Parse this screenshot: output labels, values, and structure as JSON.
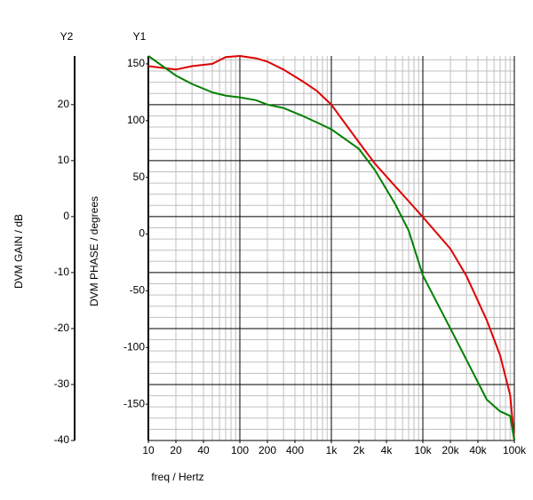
{
  "chart_data": {
    "type": "line",
    "x_label": "freq / Hertz",
    "y_label": "DVM PHASE / degrees",
    "y2_label": "DVM GAIN / dB",
    "y_axis_name": "Y1",
    "y2_axis_name": "Y2",
    "x": [
      10,
      20,
      30,
      50,
      70,
      100,
      150,
      200,
      300,
      500,
      700,
      1000,
      2000,
      3000,
      5000,
      7000,
      10000,
      20000,
      30000,
      50000,
      70000,
      90000,
      100000
    ],
    "series": [
      {
        "color": "#e00000",
        "axis": "y",
        "values": [
          148,
          145,
          148,
          150,
          156,
          157,
          155,
          152,
          145,
          134,
          126,
          114,
          81,
          62,
          42,
          29,
          15,
          -13,
          -37,
          -76,
          -107,
          -142,
          -182
        ]
      },
      {
        "color": "#008000",
        "axis": "y2",
        "values": [
          28.7,
          25.2,
          23.7,
          22.2,
          21.6,
          21.3,
          20.8,
          20,
          19.4,
          17.9,
          16.8,
          15.6,
          12.1,
          8.3,
          2.2,
          -2.5,
          -10.5,
          -20,
          -25.6,
          -32.7,
          -34.8,
          -35.6,
          -40
        ]
      }
    ],
    "xscale": "log",
    "xlim": [
      10,
      100000
    ],
    "xticks": [
      10,
      20,
      40,
      100,
      200,
      400,
      {
        "value": 1000,
        "label": "1k"
      },
      {
        "value": 2000,
        "label": "2k"
      },
      {
        "value": 4000,
        "label": "4k"
      },
      {
        "value": 10000,
        "label": "10k"
      },
      {
        "value": 20000,
        "label": "20k"
      },
      {
        "value": 40000,
        "label": "40k"
      },
      {
        "value": 100000,
        "label": "100k"
      }
    ],
    "xmajor": [
      10,
      100,
      1000,
      10000,
      100000
    ],
    "ylim": [
      -182,
      157
    ],
    "yticks": [
      -150,
      -100,
      -50,
      0,
      50,
      100,
      150
    ],
    "y2lim": [
      -40,
      28.7
    ],
    "y2ticks": [
      -40,
      -30,
      -20,
      -10,
      0,
      10,
      20
    ],
    "grid": true
  }
}
